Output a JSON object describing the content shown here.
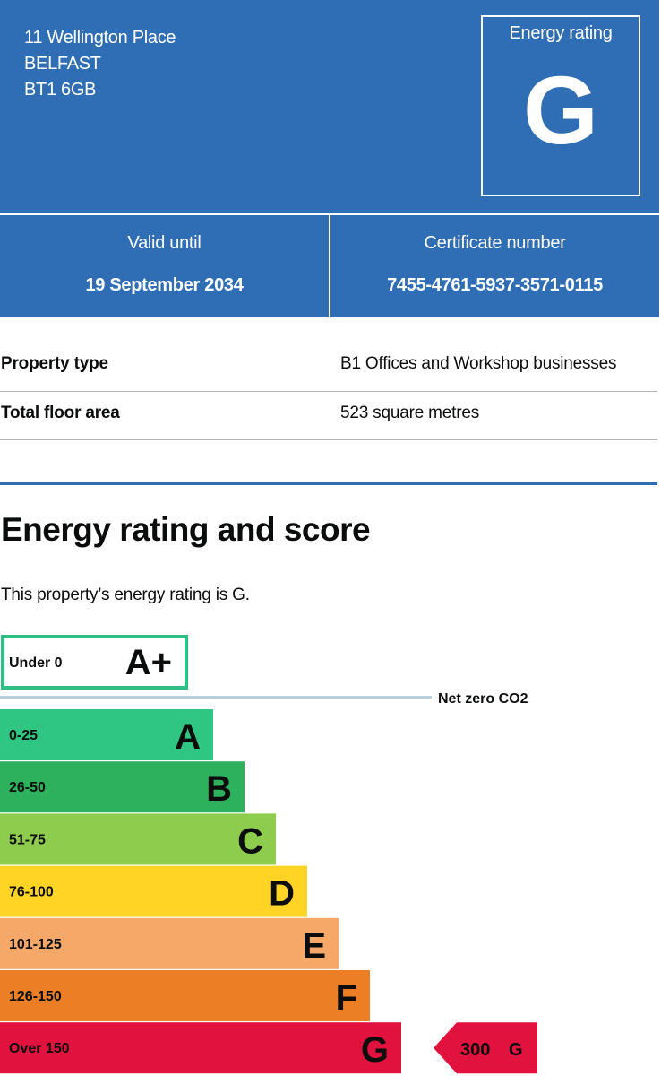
{
  "address": {
    "line1": "11 Wellington Place",
    "line2": "BELFAST",
    "line3": "BT1 6GB"
  },
  "energy_rating": {
    "label": "Energy rating",
    "value": "G"
  },
  "validity": {
    "label": "Valid until",
    "value": "19 September 2034"
  },
  "certificate": {
    "label": "Certificate number",
    "value": "7455-4761-5937-3571-0115"
  },
  "summary": {
    "property_type": {
      "key": "Property type",
      "value": "B1 Offices and Workshop businesses"
    },
    "floor_area": {
      "key": "Total floor area",
      "value": "523 square metres"
    }
  },
  "section": {
    "heading": "Energy rating and score",
    "rating_statement": "This property’s energy rating is G."
  },
  "chart_data": {
    "type": "bar",
    "bands": [
      {
        "range": "Under 0",
        "letter": "A+",
        "color": "#ffffff",
        "border": "#2fbf85"
      },
      {
        "range": "0-25",
        "letter": "A",
        "color": "#2fc583"
      },
      {
        "range": "26-50",
        "letter": "B",
        "color": "#2eb15d"
      },
      {
        "range": "51-75",
        "letter": "C",
        "color": "#8dcc4d"
      },
      {
        "range": "76-100",
        "letter": "D",
        "color": "#ffd425"
      },
      {
        "range": "101-125",
        "letter": "E",
        "color": "#f5a868"
      },
      {
        "range": "126-150",
        "letter": "F",
        "color": "#ec7f26"
      },
      {
        "range": "Over 150",
        "letter": "G",
        "color": "#e1123e"
      }
    ],
    "net_zero_label": "Net zero CO2",
    "net_zero_line_color": "#b8d0de",
    "current": {
      "score": "300",
      "letter": "G",
      "color": "#e1123e"
    }
  },
  "colors": {
    "header_bg": "#2f6eb5",
    "text": "#0b0c0c",
    "divider": "#b1b4b6"
  }
}
